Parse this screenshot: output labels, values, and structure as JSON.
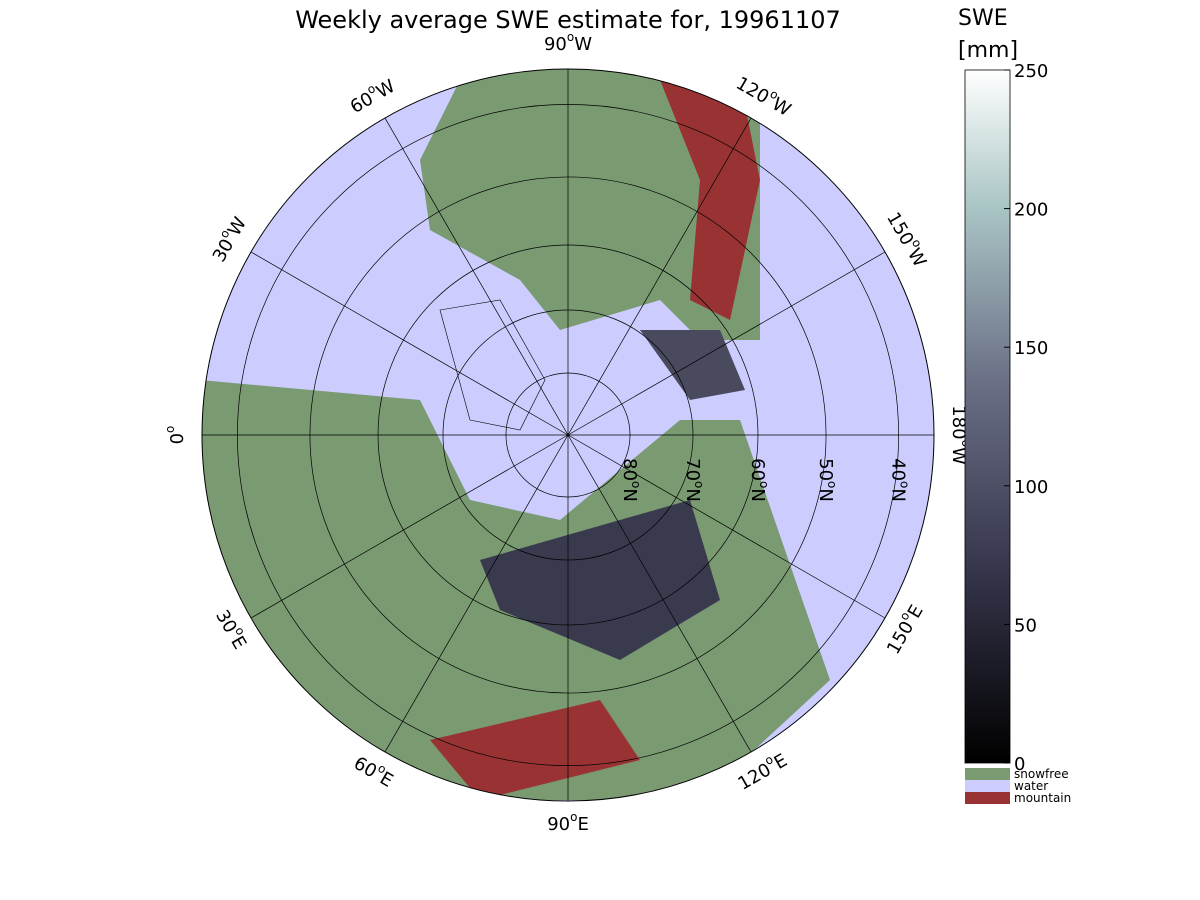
{
  "title": "Weekly average SWE estimate for, 19961107",
  "map": {
    "longitude_labels": [
      {
        "value": 0,
        "parts": [
          "0",
          "o",
          ""
        ]
      },
      {
        "value": -30,
        "parts": [
          "30",
          "o",
          "W"
        ]
      },
      {
        "value": -60,
        "parts": [
          "60",
          "o",
          "W"
        ]
      },
      {
        "value": -90,
        "parts": [
          "90",
          "o",
          "W"
        ]
      },
      {
        "value": -120,
        "parts": [
          "120",
          "o",
          "W"
        ]
      },
      {
        "value": -150,
        "parts": [
          "150",
          "o",
          "W"
        ]
      },
      {
        "value": 180,
        "parts": [
          "180",
          "o",
          "W"
        ]
      },
      {
        "value": 150,
        "parts": [
          "150",
          "o",
          "E"
        ]
      },
      {
        "value": 120,
        "parts": [
          "120",
          "o",
          "E"
        ]
      },
      {
        "value": 90,
        "parts": [
          "90",
          "o",
          "E"
        ]
      },
      {
        "value": 60,
        "parts": [
          "60",
          "o",
          "E"
        ]
      },
      {
        "value": 30,
        "parts": [
          "30",
          "o",
          "E"
        ]
      }
    ],
    "latitude_labels": [
      {
        "value": 80,
        "parts": [
          "80",
          "o",
          "N"
        ]
      },
      {
        "value": 70,
        "parts": [
          "70",
          "o",
          "N"
        ]
      },
      {
        "value": 60,
        "parts": [
          "60",
          "o",
          "N"
        ]
      },
      {
        "value": 50,
        "parts": [
          "50",
          "o",
          "N"
        ]
      },
      {
        "value": 40,
        "parts": [
          "40",
          "o",
          "N"
        ]
      }
    ]
  },
  "colorbar": {
    "label_lines": [
      "SWE",
      "[mm]"
    ],
    "lim": [
      0,
      250
    ],
    "ticks": [
      0,
      50,
      100,
      150,
      200,
      250
    ]
  },
  "legend": [
    {
      "name": "snowfree",
      "color": "#7a9a72"
    },
    {
      "name": "water",
      "color": "#ccccff"
    },
    {
      "name": "mountain",
      "color": "#993333"
    }
  ]
}
